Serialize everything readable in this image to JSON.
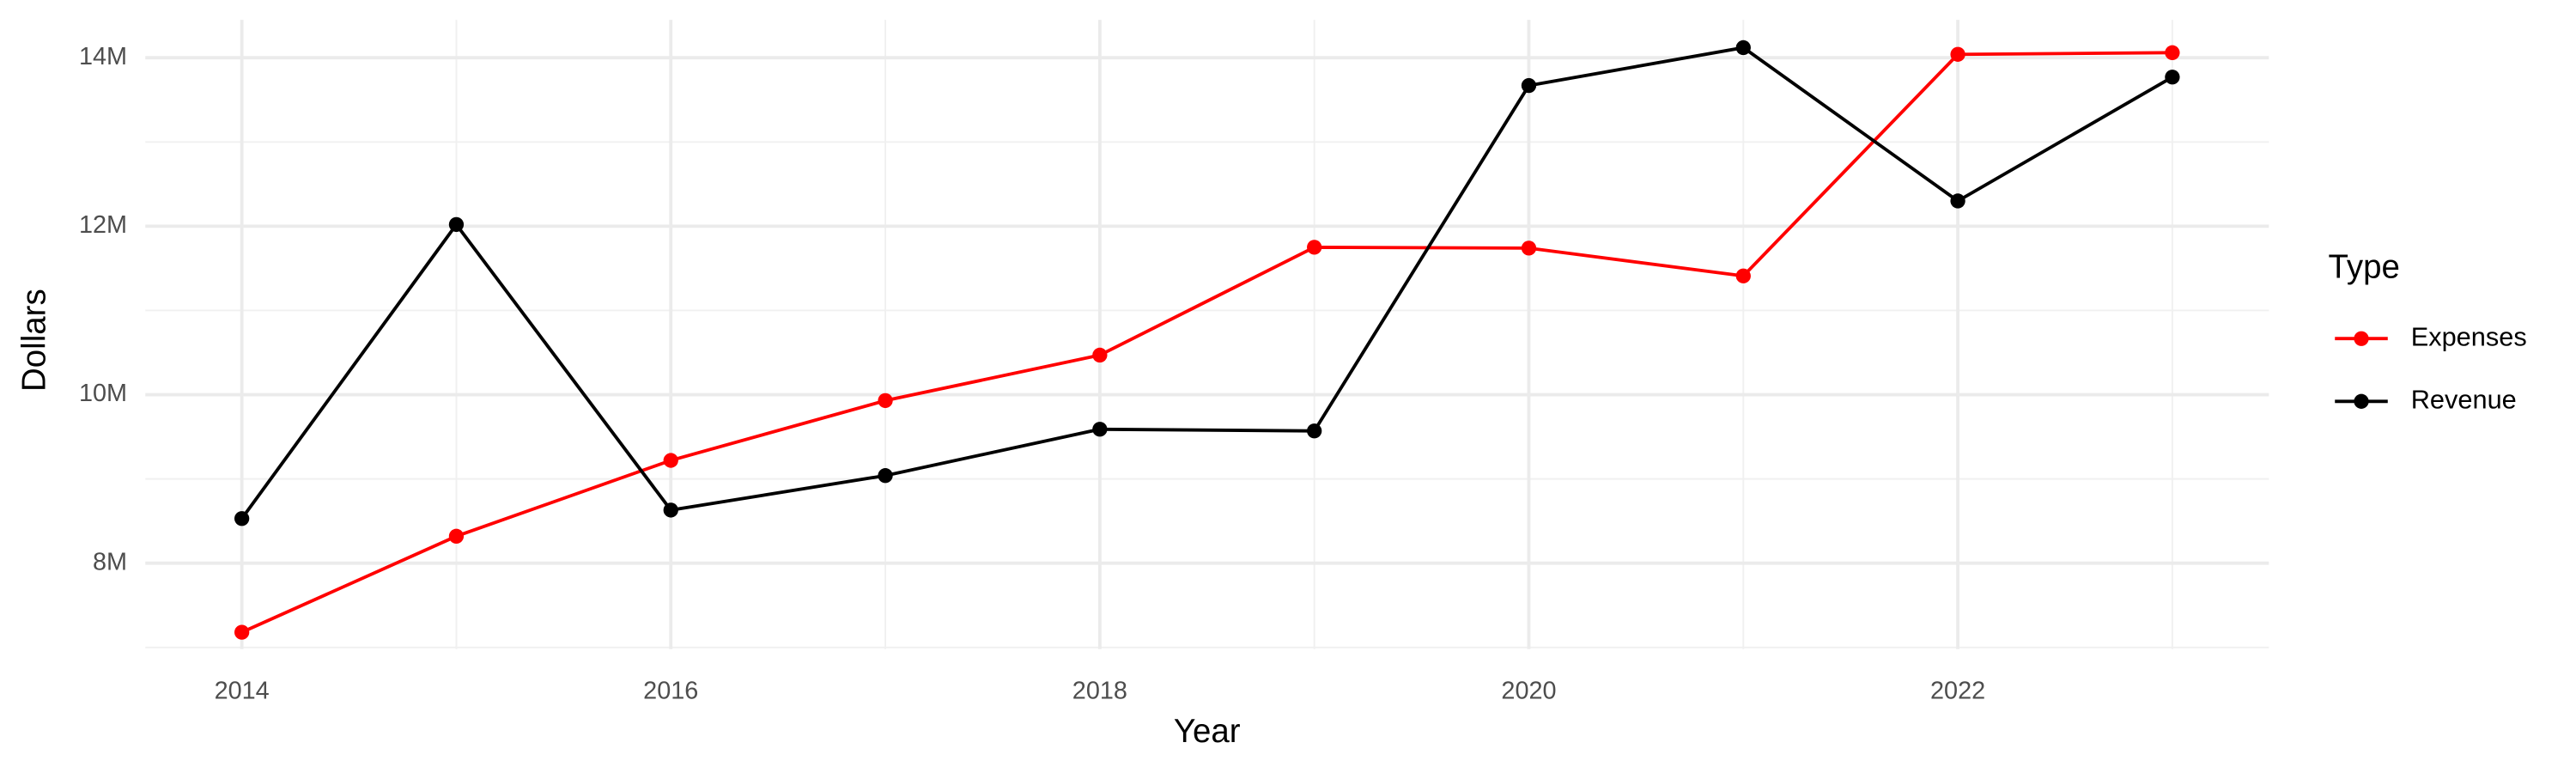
{
  "chart_data": {
    "type": "line",
    "x_label": "Year",
    "y_label": "Dollars",
    "legend_title": "Type",
    "x": [
      2014,
      2015,
      2016,
      2017,
      2018,
      2019,
      2020,
      2021,
      2022,
      2023
    ],
    "series": [
      {
        "name": "Expenses",
        "color": "#ff0000",
        "values": [
          7180000,
          8320000,
          9220000,
          9930000,
          10470000,
          11750000,
          11740000,
          11410000,
          14040000,
          14060000
        ]
      },
      {
        "name": "Revenue",
        "color": "#000000",
        "values": [
          8530000,
          12020000,
          8630000,
          9040000,
          9590000,
          9570000,
          13670000,
          14120000,
          12300000,
          13770000
        ]
      }
    ],
    "xlim": [
      2013.55,
      2023.45
    ],
    "xticks": [
      2014,
      2016,
      2018,
      2020,
      2022
    ],
    "ylim": [
      6980000,
      14450000
    ],
    "yticks": [
      {
        "value": 8000000,
        "label": "8M"
      },
      {
        "value": 10000000,
        "label": "10M"
      },
      {
        "value": 12000000,
        "label": "12M"
      },
      {
        "value": 14000000,
        "label": "14M"
      }
    ],
    "grid": true,
    "legend": "right"
  }
}
